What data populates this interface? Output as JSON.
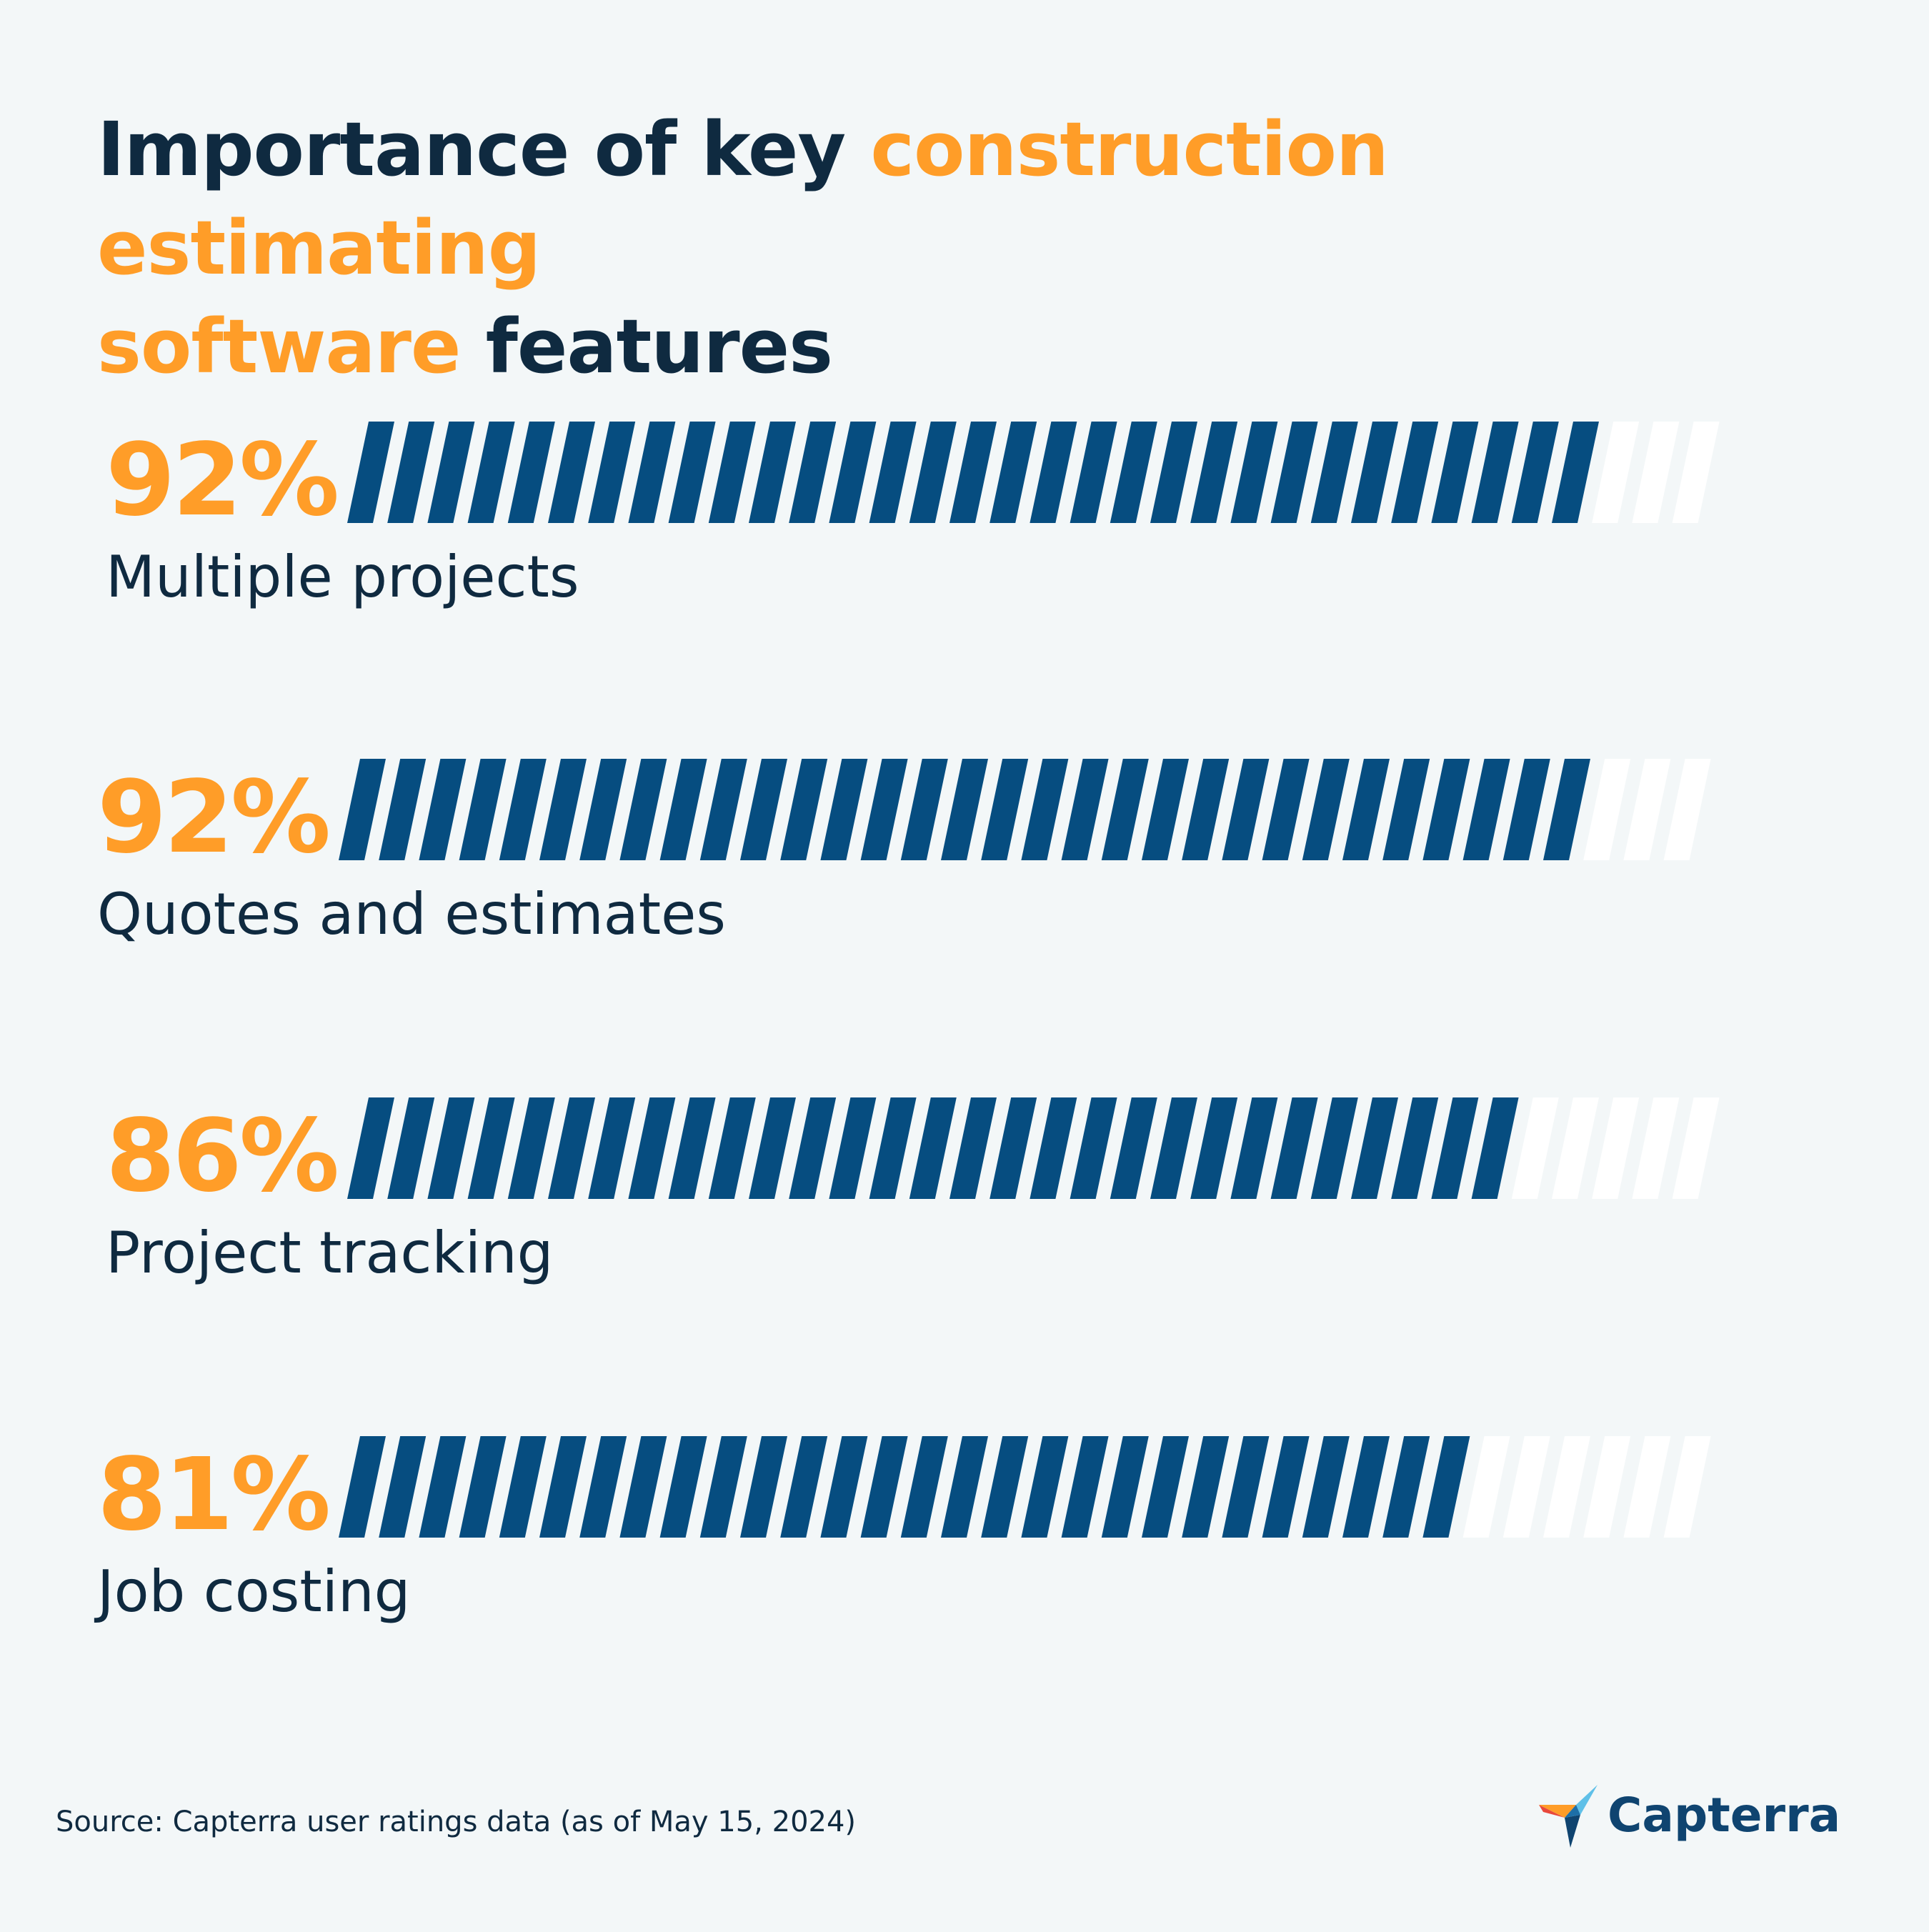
{
  "title": {
    "part1": "Importance of key ",
    "highlight1": "construction estimating",
    "highlight2": "software",
    "part2": " features"
  },
  "chart_data": {
    "type": "bar",
    "categories": [
      "Multiple projects",
      "Quotes and estimates",
      "Project tracking",
      "Job costing"
    ],
    "values": [
      92,
      92,
      86,
      81
    ],
    "value_labels": [
      "92%",
      "92%",
      "86%",
      "81%"
    ],
    "max": 100,
    "unit": "%",
    "title": "Importance of key construction estimating software features",
    "orientation": "horizontal"
  },
  "colors": {
    "filled": "#064d80",
    "empty": "#ffffff",
    "accent": "#ff9d28",
    "text": "#0f2a40",
    "background": "#f3f7f8"
  },
  "footer": {
    "source": "Source: Capterra user ratings data (as of May 15, 2024)",
    "brand": "Capterra"
  }
}
